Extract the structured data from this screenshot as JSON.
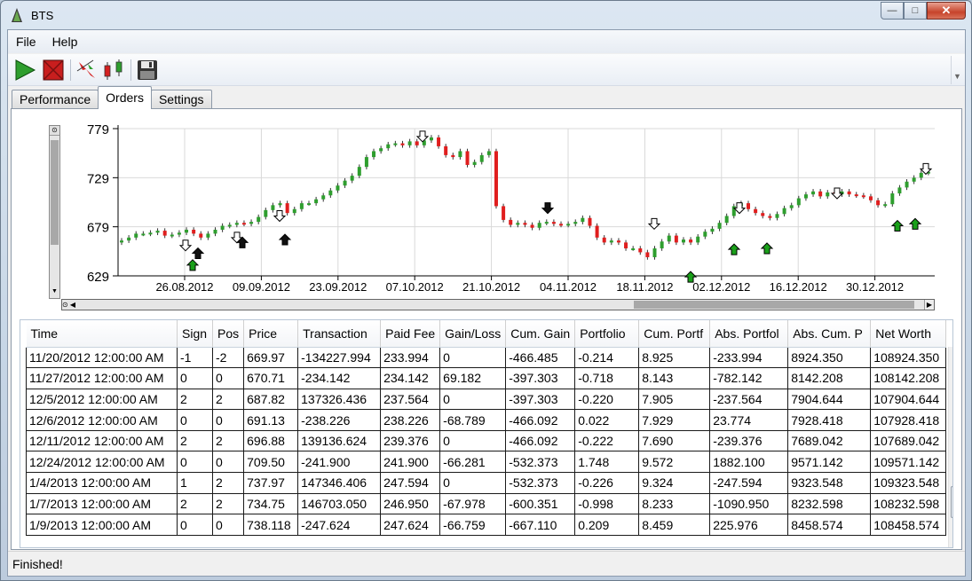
{
  "window": {
    "title": "BTS"
  },
  "menu": {
    "items": [
      "File",
      "Help"
    ]
  },
  "toolbar": {
    "icons": [
      "play-icon",
      "stop-icon",
      "signal-arrows-icon",
      "candlestick-icon",
      "save-icon"
    ]
  },
  "tabs": [
    {
      "label": "Performance",
      "active": false
    },
    {
      "label": "Orders",
      "active": true
    },
    {
      "label": "Settings",
      "active": false
    }
  ],
  "colors": {
    "up": "#2e9e2e",
    "down": "#e01e1e",
    "buy_arrow": "#1aa01a",
    "sell_arrow": "#000000"
  },
  "chart_data": {
    "type": "candlestick",
    "y_ticks": [
      779,
      729,
      679,
      629
    ],
    "ylim": [
      629,
      779
    ],
    "x_ticks": [
      "26.08.2012",
      "09.09.2012",
      "23.09.2012",
      "07.10.2012",
      "21.10.2012",
      "04.11.2012",
      "18.11.2012",
      "02.12.2012",
      "16.12.2012",
      "30.12.2012"
    ],
    "grid": true,
    "candles_approx_price_path": [
      665,
      668,
      672,
      672,
      673,
      675,
      670,
      671,
      673,
      676,
      672,
      668,
      672,
      676,
      680,
      681,
      683,
      682,
      684,
      689,
      696,
      701,
      703,
      693,
      697,
      703,
      703,
      707,
      711,
      716,
      721,
      726,
      731,
      740,
      750,
      756,
      759,
      763,
      764,
      762,
      766,
      762,
      767,
      770,
      761,
      752,
      750,
      756,
      742,
      745,
      752,
      756,
      700,
      686,
      681,
      683,
      681,
      678,
      683,
      684,
      682,
      681,
      682,
      684,
      688,
      680,
      668,
      663,
      665,
      663,
      657,
      657,
      653,
      648,
      657,
      664,
      670,
      663,
      666,
      663,
      669,
      674,
      677,
      683,
      690,
      700,
      703,
      697,
      693,
      690,
      688,
      692,
      698,
      701,
      708,
      712,
      715,
      710,
      714,
      712,
      715,
      712,
      711,
      710,
      706,
      701,
      702,
      713,
      719,
      725,
      729,
      734,
      735
    ],
    "sell_signals": [
      "25.08.2012",
      "07.09.2012",
      "12.09.2012",
      "10.10.2012",
      "02.11.2012",
      "18.11.2012",
      "04.12.2012",
      "27.12.2012",
      "08.01.2013"
    ],
    "buy_signals": [
      "25.08.2012",
      "08.09.2012",
      "14.09.2012",
      "04.12.2012",
      "12.12.2012",
      "07.01.2013"
    ]
  },
  "table": {
    "headers": [
      "Time",
      "Sign",
      "Pos",
      "Price",
      "Transaction",
      "Paid Fee",
      "Gain/Loss",
      "Cum. Gain",
      "Portfolio",
      "Cum. Portf",
      "Abs. Portfol",
      "Abs. Cum. P",
      "Net Worth"
    ],
    "rows": [
      [
        "11/20/2012 12:00:00 AM",
        "-1",
        "-2",
        "669.97",
        "-134227.994",
        "233.994",
        "0",
        "-466.485",
        "-0.214",
        "8.925",
        "-233.994",
        "8924.350",
        "108924.350"
      ],
      [
        "11/27/2012 12:00:00 AM",
        "0",
        "0",
        "670.71",
        "-234.142",
        "234.142",
        "69.182",
        "-397.303",
        "-0.718",
        "8.143",
        "-782.142",
        "8142.208",
        "108142.208"
      ],
      [
        "12/5/2012 12:00:00 AM",
        "2",
        "2",
        "687.82",
        "137326.436",
        "237.564",
        "0",
        "-397.303",
        "-0.220",
        "7.905",
        "-237.564",
        "7904.644",
        "107904.644"
      ],
      [
        "12/6/2012 12:00:00 AM",
        "0",
        "0",
        "691.13",
        "-238.226",
        "238.226",
        "-68.789",
        "-466.092",
        "0.022",
        "7.929",
        "23.774",
        "7928.418",
        "107928.418"
      ],
      [
        "12/11/2012 12:00:00 AM",
        "2",
        "2",
        "696.88",
        "139136.624",
        "239.376",
        "0",
        "-466.092",
        "-0.222",
        "7.690",
        "-239.376",
        "7689.042",
        "107689.042"
      ],
      [
        "12/24/2012 12:00:00 AM",
        "0",
        "0",
        "709.50",
        "-241.900",
        "241.900",
        "-66.281",
        "-532.373",
        "1.748",
        "9.572",
        "1882.100",
        "9571.142",
        "109571.142"
      ],
      [
        "1/4/2013 12:00:00 AM",
        "1",
        "2",
        "737.97",
        "147346.406",
        "247.594",
        "0",
        "-532.373",
        "-0.226",
        "9.324",
        "-247.594",
        "9323.548",
        "109323.548"
      ],
      [
        "1/7/2013 12:00:00 AM",
        "2",
        "2",
        "734.75",
        "146703.050",
        "246.950",
        "-67.978",
        "-600.351",
        "-0.998",
        "8.233",
        "-1090.950",
        "8232.598",
        "108232.598"
      ],
      [
        "1/9/2013 12:00:00 AM",
        "0",
        "0",
        "738.118",
        "-247.624",
        "247.624",
        "-66.759",
        "-667.110",
        "0.209",
        "8.459",
        "225.976",
        "8458.574",
        "108458.574"
      ]
    ]
  },
  "status": {
    "text": "Finished!"
  }
}
